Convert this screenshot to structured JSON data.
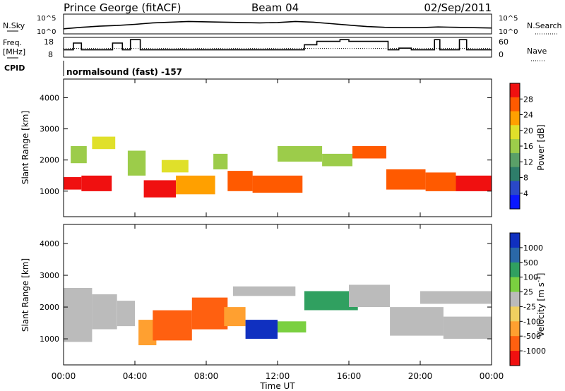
{
  "header": {
    "station": "Prince George (fitACF)",
    "beam": "Beam 04",
    "date": "02/Sep/2011"
  },
  "noise_panel": {
    "left_label": "N.Sky",
    "right_label": "N.Search",
    "left_ticks": [
      "10^5",
      "10^0"
    ],
    "right_ticks": [
      "10^5",
      "10^0"
    ]
  },
  "freq_panel": {
    "left_label_line1": "Freq.",
    "left_label_line2": "[MHz]",
    "left_ticks": [
      "18",
      "8"
    ],
    "right_ticks": [
      "60",
      "0"
    ],
    "right_label": "Nave"
  },
  "cpid_panel": {
    "label": "CPID",
    "text": "normalsound (fast) -157"
  },
  "x_axis": {
    "ticks": [
      "00:00",
      "04:00",
      "08:00",
      "12:00",
      "16:00",
      "20:00",
      "00:00"
    ],
    "title": "Time UT"
  },
  "chart_data": [
    {
      "type": "line",
      "name": "noise",
      "x_hours": [
        0,
        1,
        2,
        3,
        4,
        5,
        6,
        7,
        8,
        9,
        10,
        11,
        12,
        13,
        14,
        15,
        16,
        17,
        18,
        19,
        20,
        21,
        22,
        23,
        24
      ],
      "y_log10_sky": [
        1.2,
        1.6,
        1.9,
        2.1,
        2.4,
        2.8,
        3.0,
        3.2,
        3.1,
        3.0,
        2.9,
        2.8,
        2.9,
        3.2,
        3.0,
        2.6,
        2.2,
        1.8,
        1.6,
        1.5,
        1.5,
        1.7,
        1.6,
        1.5,
        1.4
      ],
      "ylim": [
        0,
        5
      ]
    },
    {
      "type": "line",
      "name": "frequency",
      "segments": [
        {
          "start": 0.0,
          "end": 0.55,
          "freq": 11.5
        },
        {
          "start": 0.55,
          "end": 1.0,
          "freq": 15.5
        },
        {
          "start": 1.0,
          "end": 2.75,
          "freq": 11.5
        },
        {
          "start": 2.75,
          "end": 3.3,
          "freq": 15.5
        },
        {
          "start": 3.3,
          "end": 3.75,
          "freq": 11.5
        },
        {
          "start": 3.75,
          "end": 4.3,
          "freq": 17.5
        },
        {
          "start": 4.3,
          "end": 13.5,
          "freq": 11.5
        },
        {
          "start": 13.5,
          "end": 14.2,
          "freq": 14.5
        },
        {
          "start": 14.2,
          "end": 15.5,
          "freq": 16.5
        },
        {
          "start": 15.5,
          "end": 16.0,
          "freq": 17.5
        },
        {
          "start": 16.0,
          "end": 18.2,
          "freq": 16.5
        },
        {
          "start": 18.2,
          "end": 18.8,
          "freq": 11.5
        },
        {
          "start": 18.8,
          "end": 19.5,
          "freq": 12.5
        },
        {
          "start": 19.5,
          "end": 20.8,
          "freq": 11.5
        },
        {
          "start": 20.8,
          "end": 21.1,
          "freq": 17.5
        },
        {
          "start": 21.1,
          "end": 22.2,
          "freq": 11.5
        },
        {
          "start": 22.2,
          "end": 22.6,
          "freq": 17.5
        },
        {
          "start": 22.6,
          "end": 24.0,
          "freq": 11.5
        }
      ],
      "nave_approx": 26,
      "ylim": [
        8,
        18
      ]
    },
    {
      "type": "heatmap",
      "name": "power",
      "ylabel": "Slant Range [km]",
      "y_ticks": [
        1000,
        2000,
        3000,
        4000
      ],
      "ylim": [
        180,
        4600
      ],
      "colorbar": {
        "label": "Power [dB]",
        "ticks": [
          "4",
          "8",
          "12",
          "16",
          "20",
          "24",
          "28"
        ],
        "colors": [
          "#0a18ff",
          "#2a48c8",
          "#2e7d6a",
          "#5aa068",
          "#9ccc4a",
          "#e0e02a",
          "#ffa000",
          "#ff5a00",
          "#f01010"
        ]
      },
      "regions": [
        {
          "t0": 0.0,
          "t1": 1.0,
          "r0": 1050,
          "r1": 1450,
          "level": 8
        },
        {
          "t0": 0.4,
          "t1": 1.3,
          "r0": 1900,
          "r1": 2450,
          "level": 4
        },
        {
          "t0": 1.0,
          "t1": 2.7,
          "r0": 1000,
          "r1": 1500,
          "level": 8
        },
        {
          "t0": 1.6,
          "t1": 2.9,
          "r0": 2350,
          "r1": 2750,
          "level": 5
        },
        {
          "t0": 3.6,
          "t1": 4.6,
          "r0": 1500,
          "r1": 2300,
          "level": 4
        },
        {
          "t0": 4.5,
          "t1": 6.3,
          "r0": 800,
          "r1": 1350,
          "level": 8
        },
        {
          "t0": 5.5,
          "t1": 7.0,
          "r0": 1600,
          "r1": 2000,
          "level": 5
        },
        {
          "t0": 6.3,
          "t1": 8.5,
          "r0": 900,
          "r1": 1500,
          "level": 6
        },
        {
          "t0": 8.4,
          "t1": 9.2,
          "r0": 1700,
          "r1": 2200,
          "level": 4
        },
        {
          "t0": 9.2,
          "t1": 10.6,
          "r0": 1000,
          "r1": 1650,
          "level": 7
        },
        {
          "t0": 10.6,
          "t1": 13.4,
          "r0": 950,
          "r1": 1500,
          "level": 7
        },
        {
          "t0": 12.0,
          "t1": 14.5,
          "r0": 1950,
          "r1": 2450,
          "level": 4
        },
        {
          "t0": 14.5,
          "t1": 16.2,
          "r0": 1800,
          "r1": 2200,
          "level": 4
        },
        {
          "t0": 16.2,
          "t1": 18.1,
          "r0": 2050,
          "r1": 2450,
          "level": 7
        },
        {
          "t0": 18.1,
          "t1": 20.3,
          "r0": 1050,
          "r1": 1700,
          "level": 7
        },
        {
          "t0": 20.3,
          "t1": 22.0,
          "r0": 1000,
          "r1": 1600,
          "level": 7
        },
        {
          "t0": 22.0,
          "t1": 24.0,
          "r0": 1000,
          "r1": 1500,
          "level": 8
        }
      ]
    },
    {
      "type": "heatmap",
      "name": "velocity",
      "ylabel": "Slant Range [km]",
      "y_ticks": [
        1000,
        2000,
        3000,
        4000
      ],
      "ylim": [
        180,
        4600
      ],
      "colorbar": {
        "label": "Velocity [m s^-1]",
        "ticks": [
          "1000",
          "500",
          "100",
          "25",
          "-25",
          "-100",
          "-500",
          "-1000"
        ],
        "colors": [
          "#1030c0",
          "#2a68a8",
          "#30a060",
          "#7ad040",
          "#bbbbbb",
          "#f0d060",
          "#ffa030",
          "#ff6010",
          "#f01010"
        ]
      },
      "regions": [
        {
          "t0": 0.0,
          "t1": 1.6,
          "r0": 900,
          "r1": 2600,
          "level": 4
        },
        {
          "t0": 1.6,
          "t1": 3.0,
          "r0": 1300,
          "r1": 2400,
          "level": 4
        },
        {
          "t0": 3.0,
          "t1": 4.0,
          "r0": 1400,
          "r1": 2200,
          "level": 4
        },
        {
          "t0": 4.2,
          "t1": 5.2,
          "r0": 800,
          "r1": 1600,
          "level": 6
        },
        {
          "t0": 5.0,
          "t1": 7.2,
          "r0": 950,
          "r1": 1900,
          "level": 7
        },
        {
          "t0": 7.2,
          "t1": 9.2,
          "r0": 1300,
          "r1": 2300,
          "level": 7
        },
        {
          "t0": 9.0,
          "t1": 10.2,
          "r0": 1400,
          "r1": 2000,
          "level": 6
        },
        {
          "t0": 10.2,
          "t1": 12.0,
          "r0": 1000,
          "r1": 1600,
          "level": 0
        },
        {
          "t0": 12.0,
          "t1": 13.6,
          "r0": 1200,
          "r1": 1550,
          "level": 3
        },
        {
          "t0": 13.5,
          "t1": 16.5,
          "r0": 1900,
          "r1": 2500,
          "level": 2
        },
        {
          "t0": 9.5,
          "t1": 13.0,
          "r0": 2350,
          "r1": 2650,
          "level": 4
        },
        {
          "t0": 16.0,
          "t1": 18.3,
          "r0": 2000,
          "r1": 2700,
          "level": 4
        },
        {
          "t0": 18.3,
          "t1": 21.3,
          "r0": 1100,
          "r1": 2000,
          "level": 4
        },
        {
          "t0": 20.0,
          "t1": 24.0,
          "r0": 2100,
          "r1": 2500,
          "level": 4
        },
        {
          "t0": 21.3,
          "t1": 24.0,
          "r0": 1000,
          "r1": 1700,
          "level": 4
        }
      ]
    }
  ]
}
